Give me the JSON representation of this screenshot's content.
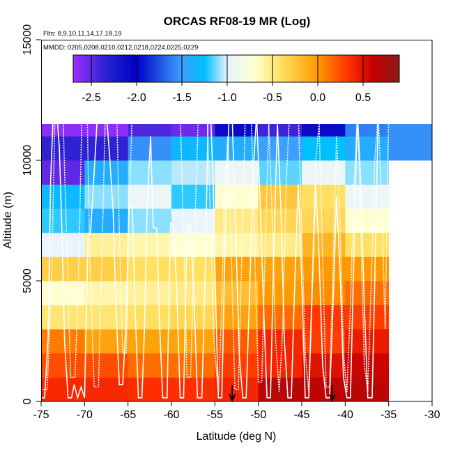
{
  "chart_data": {
    "type": "heatmap",
    "title": "ORCAS RF08-19 MR (Log)",
    "subtitle_flights": "Flts: 8,9,10,11,14,17,18,19",
    "subtitle_dates": "MMDD: 0205,0208,0210,0212,0218,0224,0225,0229",
    "xlabel": "Latitude (deg N)",
    "ylabel": "Altitude (m)",
    "xlim": [
      -75,
      -30
    ],
    "ylim": [
      0,
      15000
    ],
    "x_ticks": [
      -75,
      -70,
      -65,
      -60,
      -55,
      -50,
      -45,
      -40,
      -35,
      -30
    ],
    "x_tick_labels": [
      "-75",
      "-70",
      "-65",
      "-60",
      "-55",
      "-50",
      "-45",
      "-40",
      "-35",
      "-30"
    ],
    "y_ticks": [
      0,
      5000,
      10000,
      15000
    ],
    "y_tick_labels": [
      "0",
      "5000",
      "10000",
      "15000"
    ],
    "lat_edges": [
      -75,
      -70,
      -65,
      -60,
      -55,
      -50,
      -45,
      -40,
      -35,
      -30
    ],
    "alt_edges": [
      0,
      1000,
      2000,
      3000,
      4000,
      5000,
      6000,
      7000,
      8000,
      9000,
      10000,
      11000,
      12000
    ],
    "colorbar": {
      "min": -2.7,
      "max": 0.9,
      "ticks": [
        -2.5,
        -2.0,
        -1.5,
        -1.0,
        -0.5,
        0.0,
        0.5
      ],
      "tick_labels": [
        "-2.5",
        "-2.0",
        "-1.5",
        "-1.0",
        "-0.5",
        "0.0",
        "0.5"
      ],
      "stops": [
        {
          "v": -2.7,
          "color": "#9B30FF"
        },
        {
          "v": -2.3,
          "color": "#2020CC"
        },
        {
          "v": -2.0,
          "color": "#0000C8"
        },
        {
          "v": -1.5,
          "color": "#3CA0FF"
        },
        {
          "v": -1.25,
          "color": "#00BFFF"
        },
        {
          "v": -1.0,
          "color": "#E8F4FF"
        },
        {
          "v": -0.7,
          "color": "#FFFFD0"
        },
        {
          "v": -0.4,
          "color": "#FFE060"
        },
        {
          "v": 0.0,
          "color": "#FF9A00"
        },
        {
          "v": 0.35,
          "color": "#FF2E00"
        },
        {
          "v": 0.6,
          "color": "#C80000"
        },
        {
          "v": 0.9,
          "color": "#8B1A1A"
        }
      ]
    },
    "grid_values": [
      [
        0.38,
        0.38,
        0.35,
        0.35,
        0.4,
        0.68,
        0.65,
        0.66,
        null
      ],
      [
        0.25,
        0.25,
        0.15,
        0.15,
        0.3,
        0.4,
        0.5,
        0.58,
        null
      ],
      [
        0.1,
        -0.05,
        -0.05,
        -0.05,
        0.2,
        0.4,
        0.3,
        0.45,
        null
      ],
      [
        -0.45,
        -0.45,
        -0.4,
        -0.35,
        -0.05,
        0.15,
        0.32,
        0.3,
        null
      ],
      [
        -0.7,
        -0.6,
        -0.55,
        -0.5,
        -0.2,
        0.0,
        0.05,
        0.15,
        null
      ],
      [
        -0.3,
        -0.3,
        -0.4,
        -0.4,
        -0.05,
        -0.05,
        0.0,
        0.0,
        null
      ],
      [
        -1.0,
        -0.55,
        -0.6,
        -0.7,
        -0.6,
        -0.5,
        -0.15,
        -0.4,
        null
      ],
      [
        -1.2,
        -1.4,
        -1.1,
        -1.0,
        -0.5,
        -0.35,
        -0.35,
        -0.7,
        null
      ],
      [
        -1.3,
        -1.1,
        -0.95,
        -1.2,
        -0.7,
        -0.25,
        -0.4,
        -0.95,
        null
      ],
      [
        -2.5,
        -1.4,
        -1.1,
        -1.05,
        -0.95,
        -1.15,
        -0.95,
        -1.1,
        null
      ],
      [
        -2.35,
        -2.35,
        -1.55,
        -1.3,
        -1.4,
        -1.5,
        -1.25,
        -1.4,
        -1.55
      ],
      [
        -2.65,
        -2.65,
        -2.45,
        -2.55,
        -2.1,
        -2.4,
        -2.1,
        -1.6,
        -1.55
      ]
    ],
    "flight_tracks": [
      [
        [
          -75,
          150
        ],
        [
          -74.6,
          150
        ],
        [
          -74.2,
          2600
        ],
        [
          -73.9,
          9200
        ],
        [
          -73.6,
          12000
        ],
        [
          -73.2,
          12000
        ],
        [
          -72.9,
          10500
        ],
        [
          -72.6,
          7000
        ],
        [
          -72.3,
          2500
        ],
        [
          -71.9,
          150
        ],
        [
          -71.5,
          150
        ],
        [
          -71.2,
          700
        ],
        [
          -70.8,
          150
        ],
        [
          -70.4,
          600
        ],
        [
          -70.0,
          150
        ],
        [
          -69.6,
          6900
        ],
        [
          -69.3,
          7050
        ],
        [
          -68.8,
          10100
        ],
        [
          -68.5,
          12000
        ],
        [
          -67.5,
          12000
        ],
        [
          -67.1,
          10100
        ],
        [
          -66.7,
          7800
        ],
        [
          -66.4,
          4000
        ],
        [
          -66.0,
          700
        ],
        [
          -65.6,
          700
        ],
        [
          -65.2,
          3500
        ],
        [
          -64.9,
          8100
        ],
        [
          -64.5,
          8100
        ],
        [
          -64.2,
          4000
        ],
        [
          -63.8,
          150
        ],
        [
          -63.4,
          150
        ],
        [
          -63.1,
          3000
        ],
        [
          -62.8,
          8000
        ],
        [
          -62.4,
          11000
        ],
        [
          -62.1,
          7200
        ],
        [
          -61.7,
          7200
        ],
        [
          -61.4,
          3500
        ],
        [
          -61.0,
          150
        ],
        [
          -60.5,
          150
        ],
        [
          -60.1,
          7400
        ],
        [
          -59.8,
          7300
        ],
        [
          -59.4,
          4800
        ],
        [
          -59.0,
          150
        ],
        [
          -58.6,
          150
        ],
        [
          -58.2,
          7300
        ],
        [
          -57.8,
          7300
        ],
        [
          -57.4,
          4200
        ],
        [
          -57.0,
          150
        ],
        [
          -56.5,
          150
        ],
        [
          -56.1,
          5500
        ],
        [
          -55.8,
          11500
        ],
        [
          -55.5,
          12000
        ],
        [
          -55.2,
          9000
        ],
        [
          -54.9,
          4000
        ],
        [
          -54.6,
          150
        ],
        [
          -54.2,
          150
        ],
        [
          -53.8,
          7000
        ],
        [
          -53.4,
          11500
        ],
        [
          -53.0,
          11700
        ],
        [
          -52.6,
          7000
        ],
        [
          -52.2,
          2000
        ],
        [
          -51.8,
          150
        ],
        [
          -51.4,
          150
        ],
        [
          -51.0,
          4500
        ],
        [
          -50.6,
          9500
        ],
        [
          -50.2,
          11900
        ],
        [
          -49.8,
          8300
        ],
        [
          -49.4,
          4000
        ],
        [
          -49.0,
          150
        ],
        [
          -48.6,
          150
        ],
        [
          -48.2,
          6500
        ],
        [
          -47.8,
          11500
        ],
        [
          -47.4,
          8000
        ],
        [
          -47.0,
          2500
        ],
        [
          -46.6,
          150
        ],
        [
          -46.2,
          150
        ],
        [
          -45.8,
          5000
        ],
        [
          -45.4,
          9000
        ],
        [
          -45.0,
          5000
        ],
        [
          -44.6,
          150
        ],
        [
          -44.2,
          150
        ],
        [
          -43.8,
          4500
        ],
        [
          -43.4,
          9000
        ],
        [
          -43.0,
          6000
        ],
        [
          -42.6,
          1500
        ],
        [
          -42.2,
          150
        ],
        [
          -41.8,
          150
        ],
        [
          -41.4,
          4000
        ],
        [
          -41.0,
          8500
        ],
        [
          -40.6,
          5500
        ],
        [
          -40.2,
          1000
        ],
        [
          -39.8,
          150
        ],
        [
          -39.4,
          150
        ],
        [
          -39.0,
          6000
        ],
        [
          -38.6,
          12000
        ],
        [
          -38.2,
          9000
        ],
        [
          -37.8,
          4000
        ],
        [
          -37.4,
          150
        ],
        [
          -36.9,
          150
        ],
        [
          -36.6,
          5000
        ],
        [
          -36.2,
          12000
        ]
      ],
      [
        [
          -75,
          500
        ],
        [
          -74.3,
          500
        ],
        [
          -73.8,
          5000
        ],
        [
          -73.4,
          12000
        ],
        [
          -72.5,
          12000
        ],
        [
          -72.0,
          6000
        ],
        [
          -71.6,
          1000
        ],
        [
          -71.1,
          1000
        ],
        [
          -70.7,
          5000
        ],
        [
          -70.3,
          12000
        ],
        [
          -69.7,
          12000
        ],
        [
          -69.4,
          6000
        ],
        [
          -68.9,
          600
        ],
        [
          -68.4,
          600
        ],
        [
          -68.0,
          6000
        ],
        [
          -67.6,
          12100
        ],
        [
          -66.3,
          12200
        ],
        [
          -66.0,
          7000
        ],
        [
          -65.6,
          2000
        ],
        [
          -65.2,
          2000
        ],
        [
          -64.9,
          7500
        ],
        [
          -64.5,
          12200
        ],
        [
          -59.0,
          12000
        ],
        [
          -58.6,
          7000
        ],
        [
          -58.2,
          1000
        ],
        [
          -57.8,
          1000
        ],
        [
          -57.4,
          6000
        ],
        [
          -56.9,
          12000
        ],
        [
          -55.9,
          12000
        ],
        [
          -55.5,
          7500
        ],
        [
          -55.1,
          2500
        ],
        [
          -54.6,
          300
        ],
        [
          -54.2,
          4000
        ],
        [
          -53.9,
          9000
        ],
        [
          -53.5,
          11000
        ],
        [
          -53.1,
          6000
        ],
        [
          -52.7,
          500
        ],
        [
          -52.3,
          500
        ],
        [
          -51.9,
          6000
        ],
        [
          -51.5,
          11800
        ],
        [
          -50.8,
          11800
        ],
        [
          -50.4,
          6000
        ],
        [
          -50.0,
          800
        ],
        [
          -49.6,
          800
        ],
        [
          -49.2,
          6500
        ],
        [
          -48.8,
          11500
        ],
        [
          -48.4,
          7500
        ],
        [
          -48.0,
          2500
        ],
        [
          -47.6,
          400
        ],
        [
          -47.2,
          3000
        ],
        [
          -46.8,
          9000
        ],
        [
          -46.4,
          12000
        ],
        [
          -45.4,
          12000
        ],
        [
          -45.0,
          7000
        ],
        [
          -44.6,
          2000
        ],
        [
          -44.2,
          400
        ],
        [
          -43.8,
          5000
        ],
        [
          -43.4,
          10000
        ],
        [
          -43.0,
          11500
        ],
        [
          -42.6,
          6000
        ],
        [
          -42.2,
          600
        ],
        [
          -41.8,
          600
        ],
        [
          -41.4,
          5500
        ],
        [
          -41.0,
          11000
        ],
        [
          -40.6,
          7500
        ],
        [
          -40.2,
          2000
        ],
        [
          -39.8,
          400
        ],
        [
          -39.4,
          4000
        ],
        [
          -39.0,
          9000
        ],
        [
          -38.6,
          11800
        ],
        [
          -38.2,
          7000
        ],
        [
          -37.8,
          1500
        ],
        [
          -37.4,
          400
        ],
        [
          -37.0,
          5000
        ],
        [
          -36.6,
          10000
        ],
        [
          -36.2,
          12000
        ],
        [
          -35.8,
          8000
        ],
        [
          -35.4,
          3000
        ],
        [
          -35.0,
          12000
        ]
      ]
    ],
    "markers": [
      {
        "lat": -53.0,
        "label": ""
      },
      {
        "lat": -41.5,
        "label": ""
      }
    ]
  }
}
